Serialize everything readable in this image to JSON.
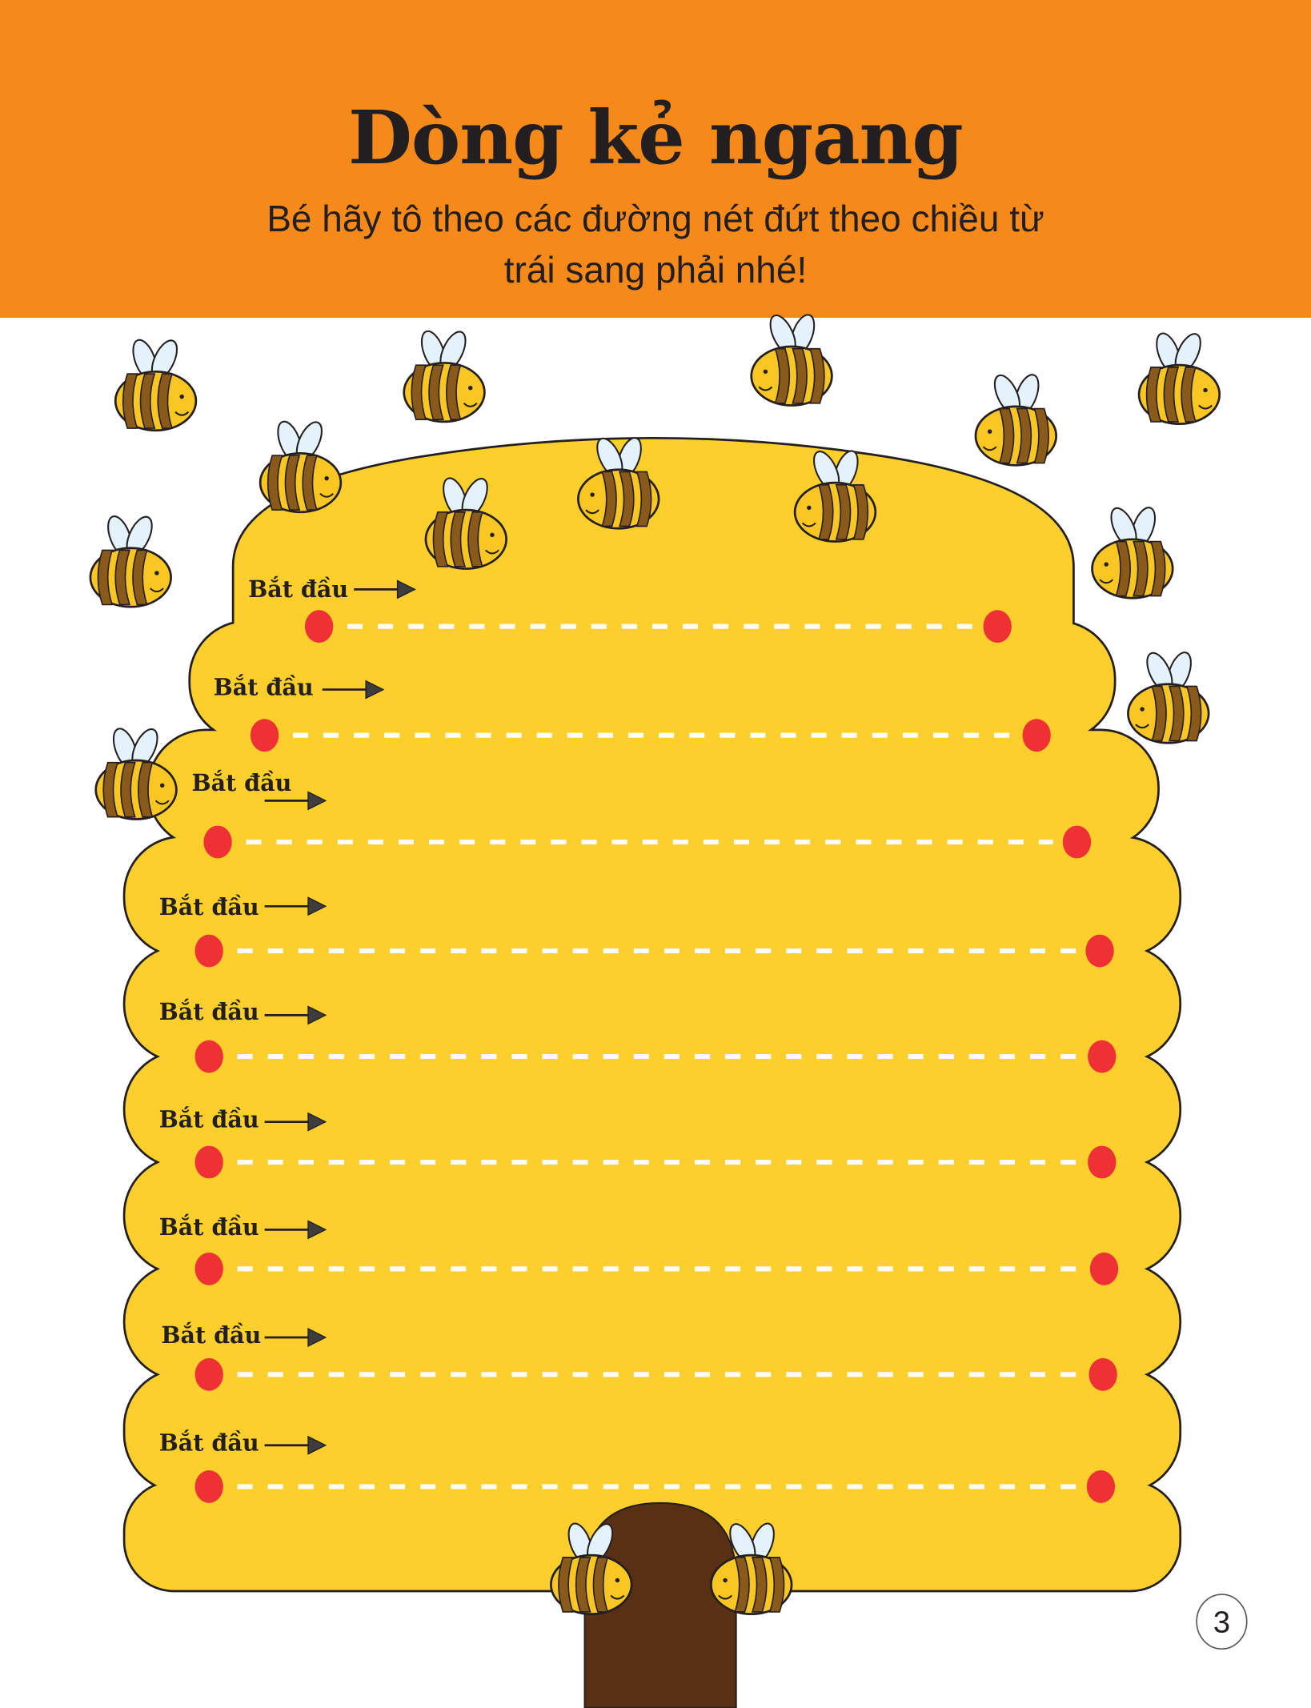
{
  "header": {
    "title": "Dòng kẻ ngang",
    "subtitle_line1": "Bé hãy tô theo các đường nét đứt theo chiều từ",
    "subtitle_line2": "trái sang phải nhé!"
  },
  "worksheet": {
    "rows": [
      {
        "start_label": "Bắt đầu"
      },
      {
        "start_label": "Bắt đầu"
      },
      {
        "start_label": "Bắt đầu"
      },
      {
        "start_label": "Bắt đầu"
      },
      {
        "start_label": "Bắt đầu"
      },
      {
        "start_label": "Bắt đầu"
      },
      {
        "start_label": "Bắt đầu"
      },
      {
        "start_label": "Bắt đầu"
      },
      {
        "start_label": "Bắt đầu"
      }
    ]
  },
  "page_number": "3",
  "colors": {
    "header": "#f5891a",
    "hive": "#fccf2c",
    "dot": "#ee3135",
    "door": "#5a3014",
    "bee_stripe": "#8a5a1a",
    "wing": "#e4f3fb"
  }
}
